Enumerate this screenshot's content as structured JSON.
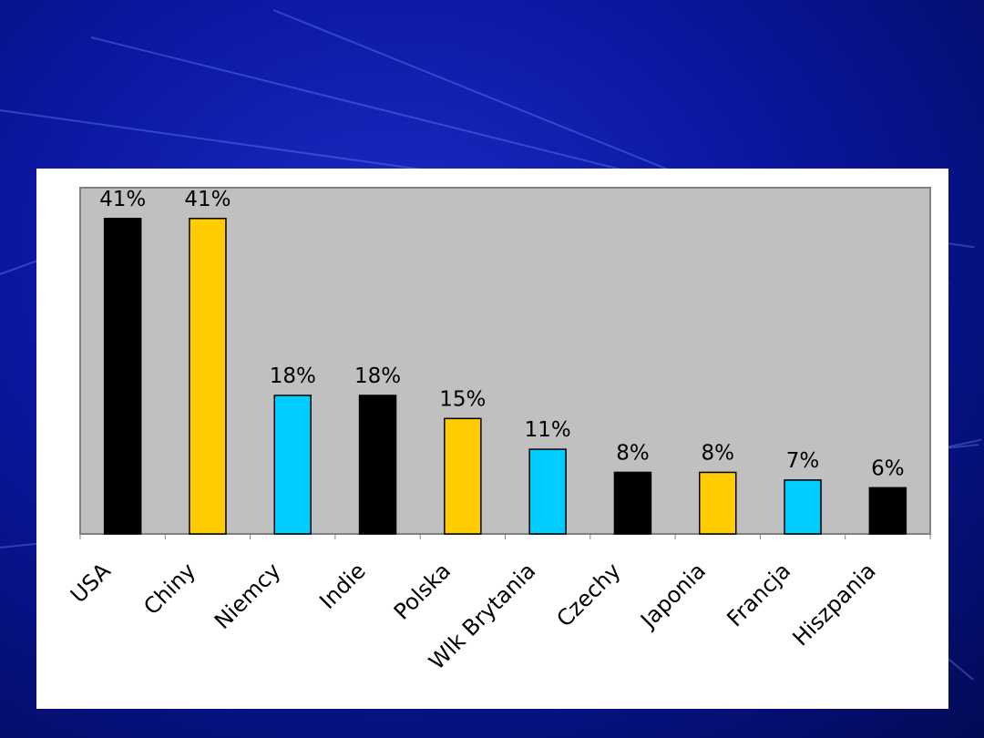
{
  "chart_data": {
    "type": "bar",
    "categories": [
      "USA",
      "Chiny",
      "Niemcy",
      "Indie",
      "Polska",
      "Wlk Brytania",
      "Czechy",
      "Japonia",
      "Francja",
      "Hiszpania"
    ],
    "values": [
      41,
      41,
      18,
      18,
      15,
      11,
      8,
      8,
      7,
      6
    ],
    "data_labels": [
      "41%",
      "41%",
      "18%",
      "18%",
      "15%",
      "11%",
      "8%",
      "8%",
      "7%",
      "6%"
    ],
    "bar_colors": [
      "#000000",
      "#FFCC00",
      "#00CCFF",
      "#000000",
      "#FFCC00",
      "#00CCFF",
      "#000000",
      "#FFCC00",
      "#00CCFF",
      "#000000"
    ],
    "unit": "%",
    "ylim": [
      0,
      45
    ],
    "grid": false,
    "legend": "none",
    "plot_background": "#C0C0C0",
    "title": "",
    "xlabel": "",
    "ylabel": ""
  }
}
